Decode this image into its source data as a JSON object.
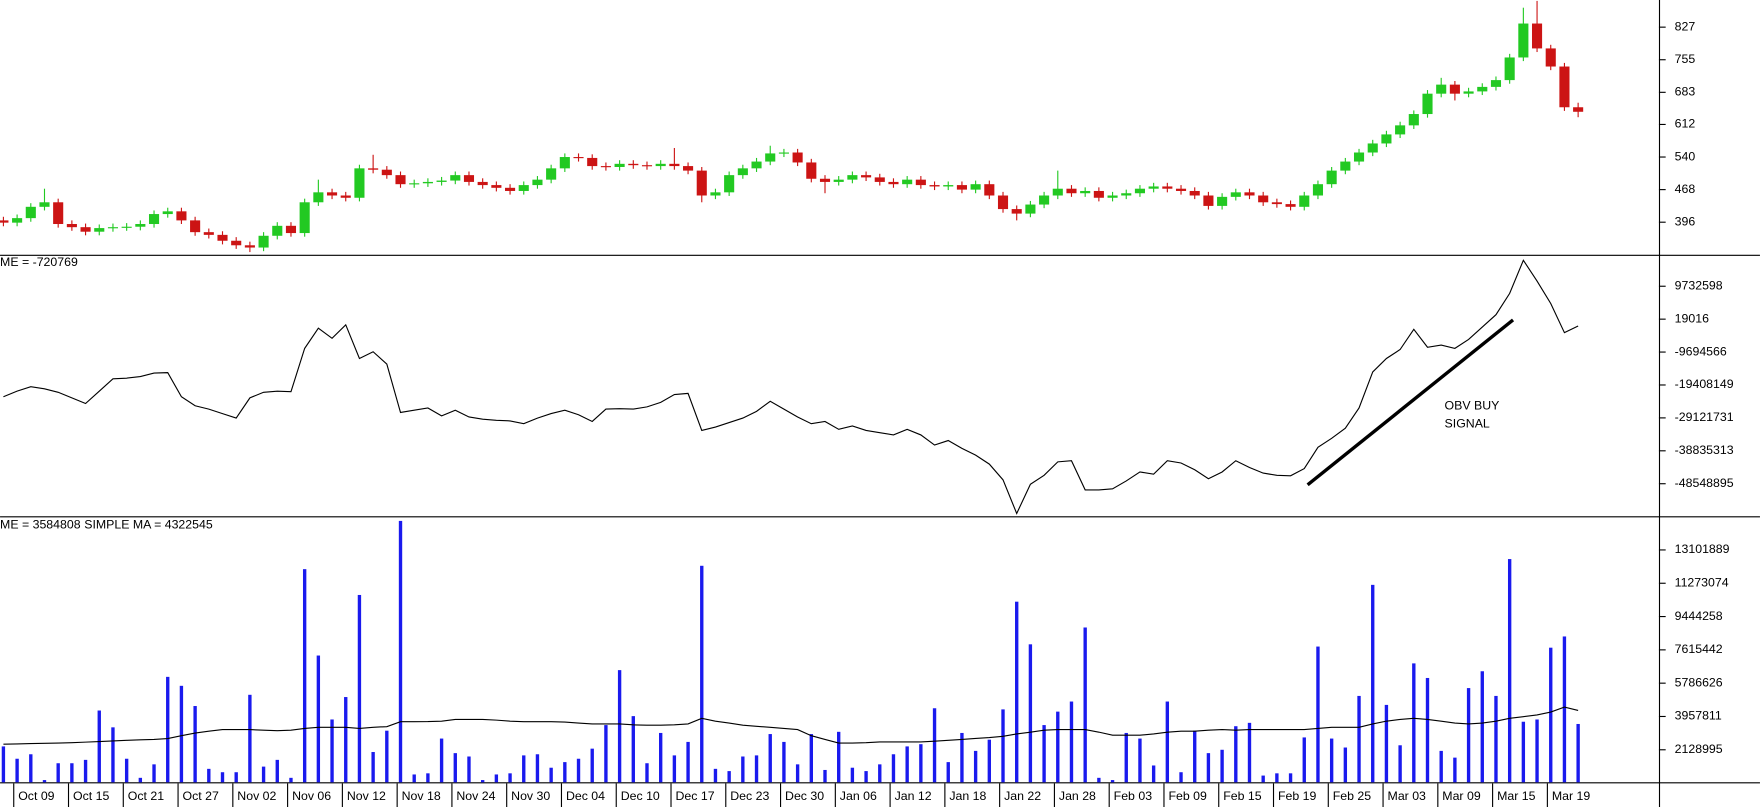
{
  "chart_data": [
    {
      "type": "candlestick",
      "up_color": "#22c922",
      "down_color": "#cc1414",
      "open": [
        400,
        395,
        405,
        430,
        440,
        392,
        385,
        375,
        383,
        385,
        386,
        392,
        414,
        420,
        400,
        374,
        368,
        355,
        345,
        340,
        366,
        388,
        372,
        440,
        462,
        455,
        450,
        515,
        512,
        500,
        480,
        482,
        485,
        488,
        500,
        485,
        478,
        472,
        465,
        478,
        490,
        515,
        540,
        538,
        520,
        518,
        525,
        522,
        520,
        525,
        520,
        510,
        455,
        462,
        500,
        515,
        530,
        548,
        550,
        528,
        492,
        485,
        490,
        500,
        495,
        485,
        480,
        490,
        478,
        475,
        478,
        468,
        480,
        455,
        425,
        415,
        435,
        455,
        470,
        460,
        465,
        450,
        455,
        460,
        470,
        475,
        470,
        465,
        455,
        432,
        452,
        462,
        455,
        440,
        436,
        430,
        455,
        480,
        510,
        530,
        550,
        570,
        590,
        610,
        635,
        680,
        700,
        680,
        685,
        695,
        710,
        760,
        835,
        780,
        740,
        650
      ],
      "high": [
        408,
        413,
        438,
        470,
        448,
        400,
        393,
        391,
        393,
        394,
        400,
        422,
        428,
        428,
        408,
        382,
        376,
        363,
        353,
        374,
        396,
        396,
        448,
        490,
        470,
        463,
        523,
        545,
        520,
        508,
        490,
        493,
        496,
        508,
        508,
        493,
        486,
        480,
        486,
        498,
        523,
        548,
        548,
        546,
        528,
        533,
        533,
        530,
        533,
        560,
        528,
        518,
        470,
        508,
        523,
        538,
        565,
        558,
        558,
        536,
        500,
        498,
        508,
        508,
        503,
        493,
        498,
        498,
        486,
        486,
        486,
        488,
        488,
        463,
        433,
        443,
        463,
        510,
        478,
        473,
        473,
        463,
        468,
        478,
        483,
        483,
        478,
        473,
        463,
        460,
        470,
        470,
        463,
        448,
        444,
        463,
        488,
        518,
        538,
        558,
        578,
        598,
        618,
        643,
        688,
        715,
        708,
        693,
        703,
        718,
        768,
        870,
        885,
        788,
        748,
        660
      ],
      "low": [
        387,
        387,
        397,
        422,
        384,
        377,
        367,
        367,
        375,
        377,
        378,
        384,
        406,
        392,
        366,
        360,
        347,
        337,
        330,
        332,
        358,
        364,
        364,
        432,
        447,
        442,
        442,
        504,
        492,
        472,
        472,
        474,
        477,
        480,
        477,
        470,
        464,
        457,
        457,
        470,
        482,
        507,
        530,
        512,
        510,
        510,
        514,
        512,
        512,
        512,
        502,
        440,
        447,
        454,
        492,
        507,
        522,
        540,
        520,
        484,
        460,
        477,
        482,
        487,
        477,
        472,
        472,
        470,
        467,
        467,
        460,
        460,
        447,
        417,
        400,
        407,
        427,
        447,
        452,
        452,
        442,
        442,
        447,
        452,
        462,
        462,
        457,
        447,
        424,
        424,
        444,
        447,
        432,
        428,
        422,
        422,
        447,
        472,
        502,
        522,
        542,
        562,
        582,
        602,
        627,
        672,
        665,
        672,
        677,
        687,
        702,
        752,
        772,
        732,
        642,
        628
      ],
      "close": [
        395,
        405,
        430,
        440,
        392,
        385,
        375,
        383,
        385,
        386,
        392,
        414,
        420,
        400,
        374,
        368,
        355,
        345,
        340,
        366,
        388,
        372,
        440,
        462,
        455,
        450,
        515,
        512,
        500,
        480,
        482,
        485,
        488,
        500,
        485,
        478,
        472,
        465,
        478,
        490,
        515,
        540,
        538,
        520,
        518,
        525,
        522,
        520,
        525,
        520,
        510,
        455,
        462,
        500,
        515,
        530,
        548,
        550,
        528,
        492,
        485,
        490,
        500,
        495,
        485,
        480,
        490,
        478,
        475,
        478,
        468,
        480,
        455,
        425,
        415,
        435,
        455,
        470,
        460,
        465,
        450,
        455,
        460,
        470,
        475,
        470,
        465,
        455,
        432,
        452,
        462,
        455,
        440,
        436,
        430,
        455,
        480,
        510,
        530,
        550,
        570,
        590,
        610,
        635,
        680,
        700,
        680,
        685,
        695,
        710,
        760,
        835,
        780,
        740,
        650,
        640
      ],
      "ylim": [
        324,
        887
      ],
      "yticks": [
        396,
        468,
        540,
        612,
        683,
        755,
        827
      ]
    },
    {
      "type": "line",
      "series": [
        {
          "name": "ME = -720769",
          "color": "#000000",
          "values": [
            -22870000,
            -21220000,
            -19890000,
            -20550000,
            -21550000,
            -23210000,
            -24860000,
            -21220000,
            -17570000,
            -17400000,
            -16910000,
            -15910000,
            -15750000,
            -22870000,
            -25530000,
            -26520000,
            -27850000,
            -29170000,
            -23210000,
            -21550000,
            -21220000,
            -21400000,
            -8620000,
            -2650000,
            -5640000,
            -1660000,
            -11600000,
            -9610000,
            -13260000,
            -27510000,
            -26850000,
            -26190000,
            -28510000,
            -26850000,
            -28840000,
            -29500000,
            -29840000,
            -30000000,
            -30830000,
            -29170000,
            -27850000,
            -26850000,
            -28180000,
            -30170000,
            -26520000,
            -26400000,
            -26520000,
            -25860000,
            -24530000,
            -22210000,
            -21880000,
            -32820000,
            -31820000,
            -30500000,
            -29170000,
            -27180000,
            -24200000,
            -26520000,
            -28840000,
            -30830000,
            -30170000,
            -32490000,
            -31490000,
            -32820000,
            -33480000,
            -34140000,
            -32490000,
            -34140000,
            -37130000,
            -35800000,
            -38120000,
            -40110000,
            -42760000,
            -47400000,
            -57350000,
            -48730000,
            -46080000,
            -42100000,
            -41770000,
            -50390000,
            -50390000,
            -50060000,
            -47740000,
            -45080000,
            -45750000,
            -41770000,
            -42430000,
            -44420000,
            -47070000,
            -45080000,
            -41770000,
            -43760000,
            -45420000,
            -46080000,
            -46200000,
            -44090000,
            -37790000,
            -35140000,
            -32160000,
            -26190000,
            -15580000,
            -11600000,
            -8950000,
            -2980000,
            -8290000,
            -7620000,
            -8620000,
            -5970000,
            -2320000,
            1330000,
            7620000,
            17400000,
            11270000,
            4640000,
            -3980000,
            -1990000
          ]
        }
      ],
      "annotation": [
        "OBV BUY",
        "SIGNAL"
      ],
      "annotation_color": "#3333cc",
      "ylim": [
        -58163000,
        18684000
      ],
      "yticks": [
        9732598,
        19016,
        -9694566,
        -19408149,
        -29121731,
        -38835313,
        -48548895
      ]
    },
    {
      "type": "bar",
      "categories": [
        null,
        "Oct 09",
        null,
        null,
        null,
        "Oct 15",
        null,
        null,
        null,
        "Oct 21",
        null,
        null,
        null,
        "Oct 27",
        null,
        null,
        null,
        "Nov 02",
        null,
        null,
        null,
        "Nov 06",
        null,
        null,
        null,
        "Nov 12",
        null,
        null,
        null,
        "Nov 18",
        null,
        null,
        null,
        "Nov 24",
        null,
        null,
        null,
        "Nov 30",
        null,
        null,
        null,
        "Dec 04",
        null,
        null,
        null,
        "Dec 10",
        null,
        null,
        null,
        "Dec 17",
        null,
        null,
        null,
        "Dec 23",
        null,
        null,
        null,
        "Dec 30",
        null,
        null,
        null,
        "Jan 06",
        null,
        null,
        null,
        "Jan 12",
        null,
        null,
        null,
        "Jan 18",
        null,
        null,
        null,
        "Jan 22",
        null,
        null,
        null,
        "Jan 28",
        null,
        null,
        null,
        "Feb 03",
        null,
        null,
        null,
        "Feb 09",
        null,
        null,
        null,
        "Feb 15",
        null,
        null,
        null,
        "Feb 19",
        null,
        null,
        null,
        "Feb 25",
        null,
        null,
        null,
        "Mar 03",
        null,
        null,
        null,
        "Mar 09",
        null,
        null,
        null,
        "Mar 15",
        null,
        null,
        null,
        "Mar 19",
        null,
        null
      ],
      "series": [
        {
          "name": "ME = 3584808",
          "type": "bar",
          "color": "#1a1aee",
          "values": [
            2314000,
            1637000,
            1883000,
            466000,
            1390000,
            1390000,
            1575000,
            4285000,
            3361000,
            1637000,
            589000,
            1329000,
            6133000,
            5641000,
            4532000,
            1082000,
            897000,
            897000,
            5148000,
            1205000,
            1575000,
            589000,
            12047000,
            7304000,
            3793000,
            5025000,
            10630000,
            2006000,
            3177000,
            14696000,
            774000,
            836000,
            2745000,
            1945000,
            1760000,
            466000,
            774000,
            836000,
            1821000,
            1883000,
            1144000,
            1452000,
            1637000,
            2191000,
            3485000,
            6503000,
            3977000,
            1390000,
            3053000,
            1821000,
            2561000,
            12232000,
            1082000,
            959000,
            1760000,
            1821000,
            2992000,
            2561000,
            1329000,
            2992000,
            1021000,
            3115000,
            1144000,
            959000,
            1329000,
            1883000,
            2314000,
            2437000,
            4409000,
            1452000,
            3053000,
            2068000,
            2684000,
            4347000,
            10261000,
            7920000,
            3485000,
            4224000,
            4778000,
            8844000,
            589000,
            466000,
            3053000,
            2745000,
            1267000,
            4778000,
            897000,
            3177000,
            1945000,
            2129000,
            3423000,
            3608000,
            713000,
            836000,
            836000,
            2807000,
            7797000,
            2745000,
            2253000,
            5086000,
            11185000,
            4593000,
            2376000,
            6873000,
            6072000,
            2068000,
            1698000,
            5517000,
            6441000,
            5086000,
            12601000,
            3669000,
            3793000,
            7735000,
            8351000,
            3546000
          ]
        },
        {
          "name": "SIMPLE MA = 4322545",
          "type": "line",
          "color": "#000000",
          "values": [
            2437000,
            2450000,
            2470000,
            2480000,
            2500000,
            2520000,
            2550000,
            2580000,
            2620000,
            2650000,
            2680000,
            2700000,
            2745000,
            2900000,
            3050000,
            3150000,
            3238000,
            3238000,
            3238000,
            3200000,
            3180000,
            3200000,
            3300000,
            3361000,
            3361000,
            3361000,
            3300000,
            3361000,
            3400000,
            3669000,
            3669000,
            3680000,
            3700000,
            3793000,
            3793000,
            3793000,
            3760000,
            3700000,
            3669000,
            3669000,
            3669000,
            3650000,
            3600000,
            3546000,
            3546000,
            3546000,
            3500000,
            3480000,
            3480000,
            3500000,
            3546000,
            3854000,
            3700000,
            3600000,
            3480000,
            3420000,
            3361000,
            3300000,
            3238000,
            2900000,
            2700000,
            2499000,
            2499000,
            2520000,
            2561000,
            2561000,
            2561000,
            2561000,
            2600000,
            2650000,
            2700000,
            2750000,
            2800000,
            2869000,
            3000000,
            3100000,
            3200000,
            3238000,
            3238000,
            3238000,
            3100000,
            2930000,
            2930000,
            2930000,
            3000000,
            3100000,
            3150000,
            3150000,
            3200000,
            3238000,
            3200000,
            3238000,
            3238000,
            3238000,
            3238000,
            3238000,
            3300000,
            3361000,
            3361000,
            3361000,
            3546000,
            3700000,
            3793000,
            3854000,
            3793000,
            3700000,
            3600000,
            3546000,
            3600000,
            3700000,
            3854000,
            3950000,
            4039000,
            4200000,
            4470000,
            4285000
          ]
        }
      ],
      "ylim": [
        343000,
        14826000
      ],
      "yticks": [
        13101889,
        11273074,
        9444258,
        7615442,
        5786626,
        3957811,
        2128995
      ]
    }
  ]
}
